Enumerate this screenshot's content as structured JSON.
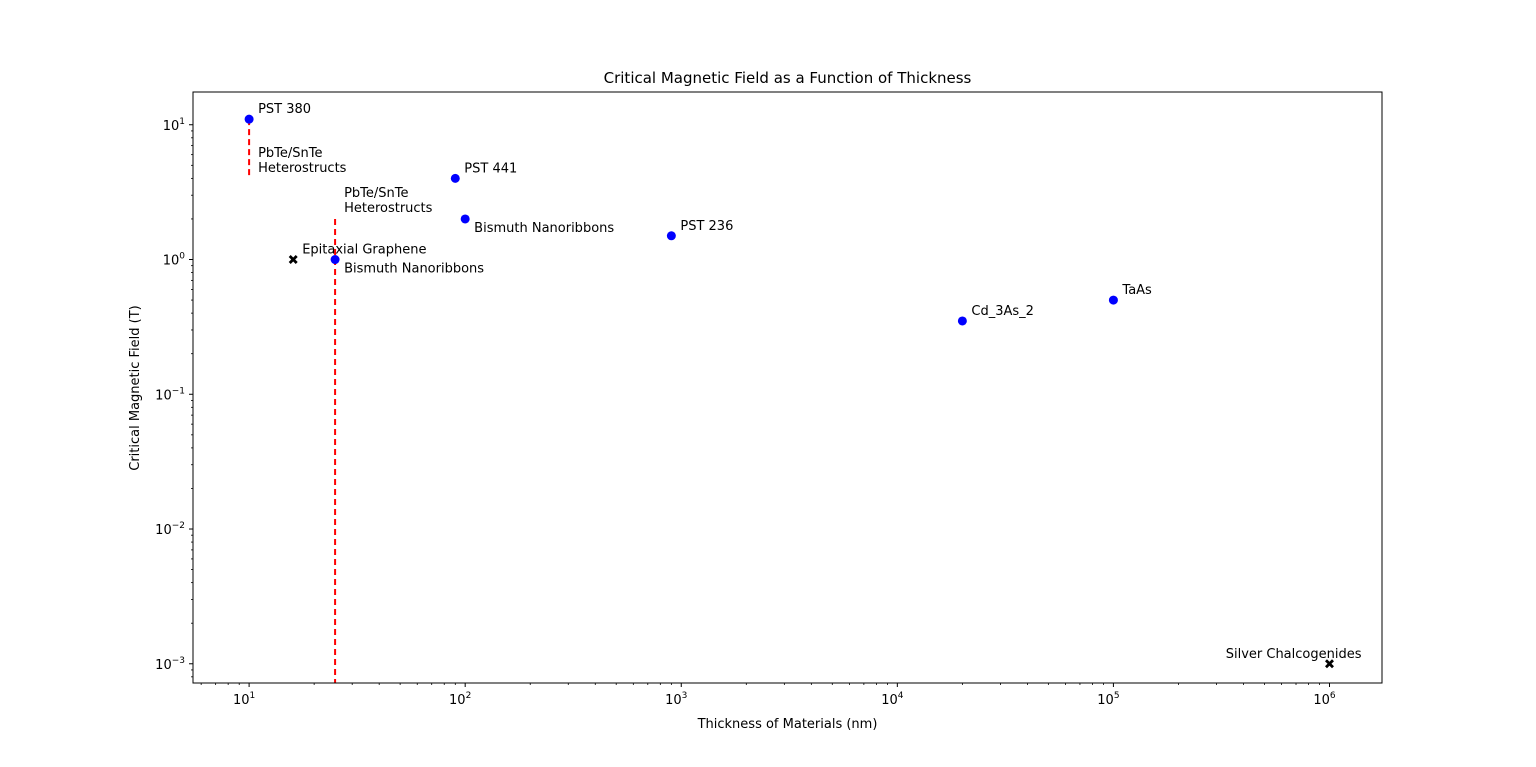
{
  "chart_data": {
    "type": "scatter",
    "title": "Critical Magnetic Field as a Function of Thickness",
    "xlabel": "Thickness of Materials (nm)",
    "ylabel": "Critical Magnetic Field (T)",
    "xscale": "log",
    "yscale": "log",
    "xlim": [
      5.5,
      1750000
    ],
    "ylim": [
      0.00072,
      17.5
    ],
    "grid": false,
    "x_ticks": [
      {
        "value": 10,
        "base": "10",
        "exp": "1"
      },
      {
        "value": 100,
        "base": "10",
        "exp": "2"
      },
      {
        "value": 1000,
        "base": "10",
        "exp": "3"
      },
      {
        "value": 10000,
        "base": "10",
        "exp": "4"
      },
      {
        "value": 100000,
        "base": "10",
        "exp": "5"
      },
      {
        "value": 1000000,
        "base": "10",
        "exp": "6"
      }
    ],
    "y_ticks": [
      {
        "value": 0.001,
        "base": "10",
        "exp": "−3"
      },
      {
        "value": 0.01,
        "base": "10",
        "exp": "−2"
      },
      {
        "value": 0.1,
        "base": "10",
        "exp": "−1"
      },
      {
        "value": 1,
        "base": "10",
        "exp": "0"
      },
      {
        "value": 10,
        "base": "10",
        "exp": "1"
      }
    ],
    "points": [
      {
        "label": "PST 380",
        "x": 10,
        "y": 11,
        "marker": "circle",
        "color": "#0000ff",
        "label_pos": "above-right"
      },
      {
        "label": "PST 441",
        "x": 90,
        "y": 4,
        "marker": "circle",
        "color": "#0000ff",
        "label_pos": "right"
      },
      {
        "label": "Bismuth Nanoribbons",
        "x": 100,
        "y": 2,
        "marker": "circle",
        "color": "#0000ff",
        "label_pos": "below-right"
      },
      {
        "label": "PST 236",
        "x": 900,
        "y": 1.5,
        "marker": "circle",
        "color": "#0000ff",
        "label_pos": "above-right"
      },
      {
        "label": "Bismuth Nanoribbons",
        "x": 25,
        "y": 1,
        "marker": "circle",
        "color": "#0000ff",
        "label_pos": "below-right"
      },
      {
        "label": "Cd_3As_2",
        "x": 20000,
        "y": 0.35,
        "marker": "circle",
        "color": "#0000ff",
        "label_pos": "above-right"
      },
      {
        "label": "TaAs",
        "x": 100000,
        "y": 0.5,
        "marker": "circle",
        "color": "#0000ff",
        "label_pos": "above-right"
      },
      {
        "label": "Epitaxial Graphene",
        "x": 16,
        "y": 1,
        "marker": "x",
        "color": "#000000",
        "label_pos": "above-right"
      },
      {
        "label": "Silver Chalcogenides",
        "x": 1000000,
        "y": 0.001,
        "marker": "x",
        "color": "#000000",
        "label_pos": "above-left"
      }
    ],
    "vlines": [
      {
        "label": "PbTe/SnTe",
        "label2": "Heterostructs",
        "x": 10,
        "y_from": 4,
        "y_to": 11,
        "color": "#ff0000"
      },
      {
        "label": "PbTe/SnTe",
        "label2": "Heterostructs",
        "x": 25,
        "y_from": 0.00072,
        "y_to": 2,
        "color": "#ff0000"
      }
    ]
  }
}
